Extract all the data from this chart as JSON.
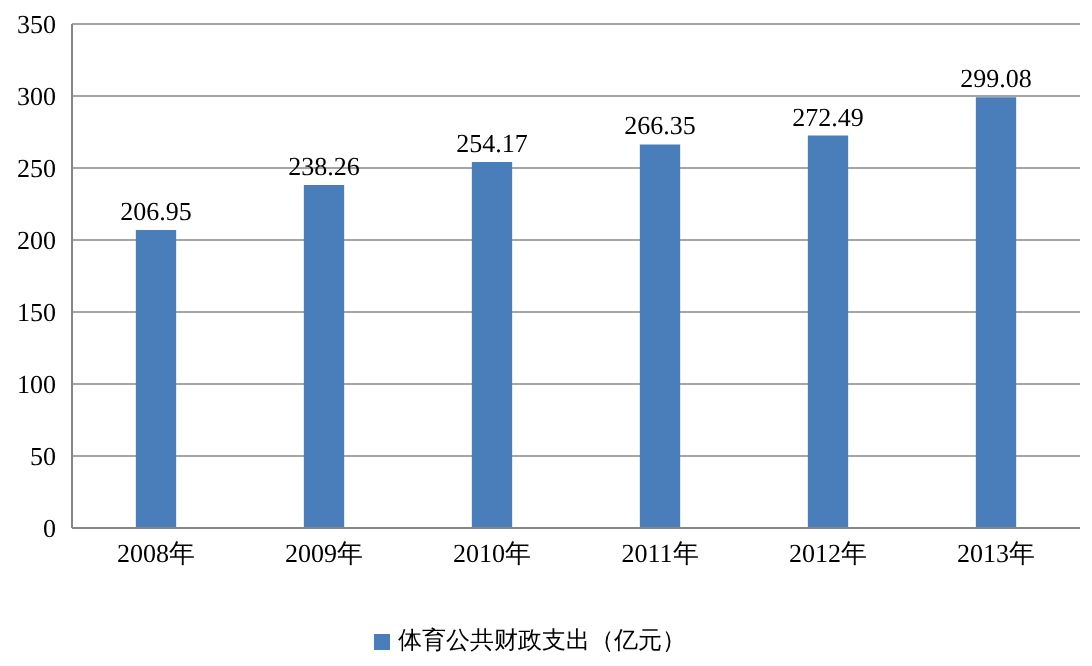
{
  "chart_data": {
    "type": "bar",
    "categories": [
      "2008年",
      "2009年",
      "2010年",
      "2011年",
      "2012年",
      "2013年"
    ],
    "series": [
      {
        "name": "体育公共财政支出（亿元）",
        "color": "#4a7ebb",
        "values": [
          206.95,
          238.26,
          254.17,
          266.35,
          272.49,
          299.08
        ]
      }
    ],
    "ylim": [
      0,
      350
    ],
    "yticks": [
      0,
      50,
      100,
      150,
      200,
      250,
      300,
      350
    ],
    "grid": "y",
    "legend": "bottom",
    "data_labels": true
  }
}
